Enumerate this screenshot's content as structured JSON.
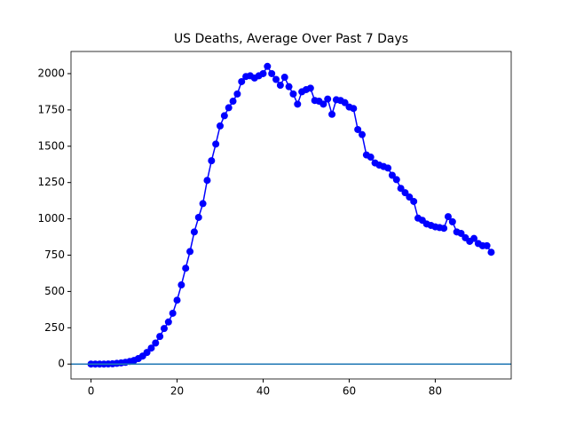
{
  "chart_data": {
    "type": "line",
    "title": "US Deaths, Average Over Past 7 Days",
    "x": [
      0,
      1,
      2,
      3,
      4,
      5,
      6,
      7,
      8,
      9,
      10,
      11,
      12,
      13,
      14,
      15,
      16,
      17,
      18,
      19,
      20,
      21,
      22,
      23,
      24,
      25,
      26,
      27,
      28,
      29,
      30,
      31,
      32,
      33,
      34,
      35,
      36,
      37,
      38,
      39,
      40,
      41,
      42,
      43,
      44,
      45,
      46,
      47,
      48,
      49,
      50,
      51,
      52,
      53,
      54,
      55,
      56,
      57,
      58,
      59,
      60,
      61,
      62,
      63,
      64,
      65,
      66,
      67,
      68,
      69,
      70,
      71,
      72,
      73,
      74,
      75,
      76,
      77,
      78,
      79,
      80,
      81,
      82,
      83,
      84,
      85,
      86,
      87,
      88,
      89,
      90,
      91,
      92,
      93
    ],
    "series": [
      {
        "color": "#0000ff",
        "values": [
          0,
          0,
          0,
          0,
          1,
          2,
          5,
          8,
          12,
          18,
          25,
          38,
          55,
          80,
          110,
          145,
          190,
          245,
          290,
          350,
          440,
          545,
          660,
          775,
          910,
          1010,
          1105,
          1265,
          1400,
          1515,
          1640,
          1710,
          1765,
          1810,
          1860,
          1945,
          1980,
          1985,
          1970,
          1985,
          2000,
          2050,
          2000,
          1960,
          1920,
          1975,
          1910,
          1860,
          1790,
          1875,
          1890,
          1900,
          1815,
          1810,
          1790,
          1825,
          1720,
          1820,
          1815,
          1800,
          1770,
          1760,
          1615,
          1580,
          1440,
          1425,
          1385,
          1370,
          1360,
          1350,
          1300,
          1270,
          1210,
          1180,
          1150,
          1120,
          1005,
          990,
          965,
          955,
          945,
          940,
          935,
          1015,
          980,
          910,
          900,
          870,
          845,
          865,
          830,
          815,
          815,
          770
        ]
      }
    ],
    "hlines": [
      {
        "value": 0,
        "color": "#1f77b4"
      }
    ],
    "xlim": [
      -4.65,
      97.65
    ],
    "xticks": [
      0,
      20,
      40,
      60,
      80
    ],
    "ylim": [
      -102.5,
      2152.5
    ],
    "yticks": [
      0,
      250,
      500,
      750,
      1000,
      1250,
      1500,
      1750,
      2000
    ],
    "grid": false
  }
}
